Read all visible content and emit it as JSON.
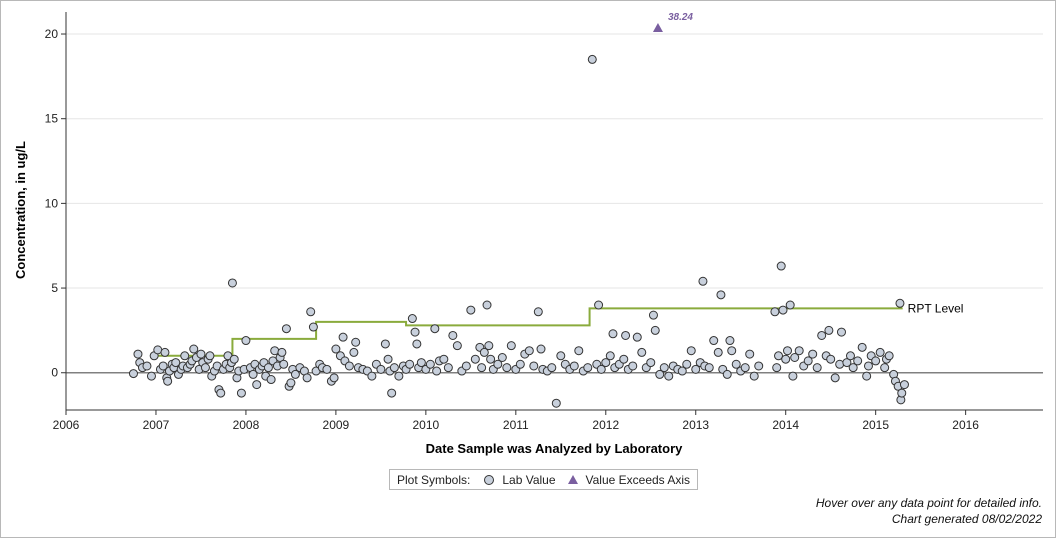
{
  "chart_data": {
    "type": "scatter",
    "xlabel": "Date Sample was Analyzed by Laboratory",
    "ylabel": "Concentration, in ug/L",
    "xlim": [
      2006.0,
      2016.86
    ],
    "ylim": [
      -2.2,
      21.3
    ],
    "x_ticks": [
      2006,
      2007,
      2008,
      2009,
      2010,
      2011,
      2012,
      2013,
      2014,
      2015,
      2016
    ],
    "y_ticks": [
      0,
      5,
      10,
      15,
      20
    ],
    "grid": "horizontal",
    "colors": {
      "lab_value_fill": "#c8d0dc",
      "marker_edge": "#333333",
      "exceeds": "#7a5fa0",
      "rpt": "#8aab3c",
      "zero_line": "#808080",
      "grid": "#e6e6e6"
    },
    "rpt_level": {
      "name": "RPT Level",
      "steps": [
        {
          "x": 2007.0,
          "y": 1.0
        },
        {
          "x": 2007.85,
          "y": 2.0
        },
        {
          "x": 2008.78,
          "y": 3.0
        },
        {
          "x": 2009.78,
          "y": 2.8
        },
        {
          "x": 2011.82,
          "y": 3.8
        },
        {
          "x": 2015.3,
          "y": 3.8
        }
      ]
    },
    "exceeds_axis": [
      {
        "x": 2012.58,
        "y": 38.24,
        "label": "38.24"
      }
    ],
    "lab_values": [
      [
        2006.75,
        -0.05
      ],
      [
        2006.8,
        1.1
      ],
      [
        2006.82,
        0.6
      ],
      [
        2006.85,
        0.3
      ],
      [
        2006.9,
        0.4
      ],
      [
        2006.95,
        -0.2
      ],
      [
        2006.98,
        1.0
      ],
      [
        2007.02,
        1.35
      ],
      [
        2007.05,
        0.2
      ],
      [
        2007.08,
        0.4
      ],
      [
        2007.1,
        1.2
      ],
      [
        2007.12,
        -0.3
      ],
      [
        2007.13,
        -0.5
      ],
      [
        2007.15,
        0.1
      ],
      [
        2007.18,
        0.5
      ],
      [
        2007.2,
        0.3
      ],
      [
        2007.22,
        0.6
      ],
      [
        2007.25,
        -0.1
      ],
      [
        2007.28,
        0.2
      ],
      [
        2007.3,
        0.4
      ],
      [
        2007.32,
        1.0
      ],
      [
        2007.35,
        0.3
      ],
      [
        2007.38,
        0.5
      ],
      [
        2007.4,
        0.7
      ],
      [
        2007.42,
        1.4
      ],
      [
        2007.45,
        0.9
      ],
      [
        2007.48,
        0.2
      ],
      [
        2007.5,
        1.1
      ],
      [
        2007.52,
        0.6
      ],
      [
        2007.55,
        0.3
      ],
      [
        2007.58,
        0.8
      ],
      [
        2007.6,
        1.0
      ],
      [
        2007.62,
        -0.2
      ],
      [
        2007.65,
        0.1
      ],
      [
        2007.68,
        0.4
      ],
      [
        2007.7,
        -1.0
      ],
      [
        2007.72,
        -1.2
      ],
      [
        2007.75,
        0.2
      ],
      [
        2007.78,
        0.5
      ],
      [
        2007.8,
        1.0
      ],
      [
        2007.82,
        0.3
      ],
      [
        2007.84,
        0.6
      ],
      [
        2007.85,
        5.3
      ],
      [
        2007.87,
        0.8
      ],
      [
        2007.9,
        -0.3
      ],
      [
        2007.92,
        0.1
      ],
      [
        2007.95,
        -1.2
      ],
      [
        2007.98,
        0.2
      ],
      [
        2008.0,
        1.9
      ],
      [
        2008.05,
        0.3
      ],
      [
        2008.08,
        -0.1
      ],
      [
        2008.1,
        0.5
      ],
      [
        2008.12,
        -0.7
      ],
      [
        2008.15,
        0.2
      ],
      [
        2008.18,
        0.4
      ],
      [
        2008.2,
        0.6
      ],
      [
        2008.22,
        -0.2
      ],
      [
        2008.25,
        0.3
      ],
      [
        2008.28,
        -0.4
      ],
      [
        2008.3,
        0.7
      ],
      [
        2008.32,
        1.3
      ],
      [
        2008.35,
        0.4
      ],
      [
        2008.38,
        0.9
      ],
      [
        2008.4,
        1.2
      ],
      [
        2008.42,
        0.5
      ],
      [
        2008.45,
        2.6
      ],
      [
        2008.48,
        -0.8
      ],
      [
        2008.5,
        -0.6
      ],
      [
        2008.52,
        0.2
      ],
      [
        2008.55,
        -0.1
      ],
      [
        2008.6,
        0.3
      ],
      [
        2008.65,
        0.1
      ],
      [
        2008.68,
        -0.3
      ],
      [
        2008.72,
        3.6
      ],
      [
        2008.75,
        2.7
      ],
      [
        2008.78,
        0.1
      ],
      [
        2008.82,
        0.5
      ],
      [
        2008.85,
        0.3
      ],
      [
        2008.9,
        0.2
      ],
      [
        2008.95,
        -0.5
      ],
      [
        2008.98,
        -0.3
      ],
      [
        2009.0,
        1.4
      ],
      [
        2009.05,
        1.0
      ],
      [
        2009.08,
        2.1
      ],
      [
        2009.1,
        0.7
      ],
      [
        2009.15,
        0.4
      ],
      [
        2009.2,
        1.2
      ],
      [
        2009.22,
        1.8
      ],
      [
        2009.25,
        0.3
      ],
      [
        2009.3,
        0.2
      ],
      [
        2009.35,
        0.1
      ],
      [
        2009.4,
        -0.2
      ],
      [
        2009.45,
        0.5
      ],
      [
        2009.5,
        0.2
      ],
      [
        2009.55,
        1.7
      ],
      [
        2009.58,
        0.8
      ],
      [
        2009.6,
        0.1
      ],
      [
        2009.62,
        -1.2
      ],
      [
        2009.65,
        0.3
      ],
      [
        2009.7,
        -0.2
      ],
      [
        2009.75,
        0.4
      ],
      [
        2009.78,
        0.2
      ],
      [
        2009.82,
        0.5
      ],
      [
        2009.85,
        3.2
      ],
      [
        2009.88,
        2.4
      ],
      [
        2009.9,
        1.7
      ],
      [
        2009.92,
        0.3
      ],
      [
        2009.95,
        0.6
      ],
      [
        2010.0,
        0.2
      ],
      [
        2010.05,
        0.5
      ],
      [
        2010.1,
        2.6
      ],
      [
        2010.12,
        0.1
      ],
      [
        2010.15,
        0.7
      ],
      [
        2010.2,
        0.8
      ],
      [
        2010.25,
        0.3
      ],
      [
        2010.3,
        2.2
      ],
      [
        2010.35,
        1.6
      ],
      [
        2010.4,
        0.1
      ],
      [
        2010.45,
        0.4
      ],
      [
        2010.5,
        3.7
      ],
      [
        2010.55,
        0.8
      ],
      [
        2010.6,
        1.5
      ],
      [
        2010.62,
        0.3
      ],
      [
        2010.65,
        1.2
      ],
      [
        2010.68,
        4.0
      ],
      [
        2010.7,
        1.6
      ],
      [
        2010.72,
        0.8
      ],
      [
        2010.75,
        0.2
      ],
      [
        2010.8,
        0.5
      ],
      [
        2010.85,
        0.9
      ],
      [
        2010.9,
        0.3
      ],
      [
        2010.95,
        1.6
      ],
      [
        2011.0,
        0.2
      ],
      [
        2011.05,
        0.5
      ],
      [
        2011.1,
        1.1
      ],
      [
        2011.15,
        1.3
      ],
      [
        2011.2,
        0.4
      ],
      [
        2011.25,
        3.6
      ],
      [
        2011.28,
        1.4
      ],
      [
        2011.3,
        0.2
      ],
      [
        2011.35,
        0.1
      ],
      [
        2011.4,
        0.3
      ],
      [
        2011.45,
        -1.8
      ],
      [
        2011.5,
        1.0
      ],
      [
        2011.55,
        0.5
      ],
      [
        2011.6,
        0.2
      ],
      [
        2011.65,
        0.4
      ],
      [
        2011.7,
        1.3
      ],
      [
        2011.75,
        0.1
      ],
      [
        2011.8,
        0.3
      ],
      [
        2011.85,
        18.5
      ],
      [
        2011.9,
        0.5
      ],
      [
        2011.92,
        4.0
      ],
      [
        2011.95,
        0.2
      ],
      [
        2012.0,
        0.6
      ],
      [
        2012.05,
        1.0
      ],
      [
        2012.08,
        2.3
      ],
      [
        2012.1,
        0.3
      ],
      [
        2012.15,
        0.5
      ],
      [
        2012.2,
        0.8
      ],
      [
        2012.22,
        2.2
      ],
      [
        2012.25,
        0.2
      ],
      [
        2012.3,
        0.4
      ],
      [
        2012.35,
        2.1
      ],
      [
        2012.4,
        1.2
      ],
      [
        2012.45,
        0.3
      ],
      [
        2012.5,
        0.6
      ],
      [
        2012.53,
        3.4
      ],
      [
        2012.55,
        2.5
      ],
      [
        2012.6,
        -0.1
      ],
      [
        2012.65,
        0.3
      ],
      [
        2012.7,
        -0.2
      ],
      [
        2012.75,
        0.4
      ],
      [
        2012.8,
        0.2
      ],
      [
        2012.85,
        0.1
      ],
      [
        2012.9,
        0.5
      ],
      [
        2012.95,
        1.3
      ],
      [
        2013.0,
        0.2
      ],
      [
        2013.05,
        0.6
      ],
      [
        2013.08,
        5.4
      ],
      [
        2013.1,
        0.4
      ],
      [
        2013.15,
        0.3
      ],
      [
        2013.2,
        1.9
      ],
      [
        2013.25,
        1.2
      ],
      [
        2013.28,
        4.6
      ],
      [
        2013.3,
        0.2
      ],
      [
        2013.35,
        -0.1
      ],
      [
        2013.38,
        1.9
      ],
      [
        2013.4,
        1.3
      ],
      [
        2013.45,
        0.5
      ],
      [
        2013.5,
        0.1
      ],
      [
        2013.55,
        0.3
      ],
      [
        2013.6,
        1.1
      ],
      [
        2013.65,
        -0.2
      ],
      [
        2013.7,
        0.4
      ],
      [
        2013.88,
        3.6
      ],
      [
        2013.9,
        0.3
      ],
      [
        2013.92,
        1.0
      ],
      [
        2013.95,
        6.3
      ],
      [
        2013.97,
        3.7
      ],
      [
        2014.0,
        0.8
      ],
      [
        2014.02,
        1.3
      ],
      [
        2014.05,
        4.0
      ],
      [
        2014.08,
        -0.2
      ],
      [
        2014.1,
        0.9
      ],
      [
        2014.15,
        1.3
      ],
      [
        2014.2,
        0.4
      ],
      [
        2014.25,
        0.7
      ],
      [
        2014.3,
        1.1
      ],
      [
        2014.35,
        0.3
      ],
      [
        2014.4,
        2.2
      ],
      [
        2014.45,
        1.0
      ],
      [
        2014.48,
        2.5
      ],
      [
        2014.5,
        0.8
      ],
      [
        2014.55,
        -0.3
      ],
      [
        2014.6,
        0.5
      ],
      [
        2014.62,
        2.4
      ],
      [
        2014.68,
        0.6
      ],
      [
        2014.72,
        1.0
      ],
      [
        2014.75,
        0.3
      ],
      [
        2014.8,
        0.7
      ],
      [
        2014.85,
        1.5
      ],
      [
        2014.9,
        -0.2
      ],
      [
        2014.92,
        0.4
      ],
      [
        2014.95,
        1.0
      ],
      [
        2015.0,
        0.7
      ],
      [
        2015.05,
        1.2
      ],
      [
        2015.1,
        0.3
      ],
      [
        2015.12,
        0.8
      ],
      [
        2015.15,
        1.0
      ],
      [
        2015.2,
        -0.1
      ],
      [
        2015.22,
        -0.5
      ],
      [
        2015.25,
        -0.8
      ],
      [
        2015.27,
        4.1
      ],
      [
        2015.28,
        -1.6
      ],
      [
        2015.29,
        -1.2
      ],
      [
        2015.32,
        -0.7
      ]
    ]
  },
  "legend": {
    "title": "Plot Symbols:",
    "items": [
      {
        "label": "Lab Value",
        "symbol": "circle"
      },
      {
        "label": "Value Exceeds Axis",
        "symbol": "triangle"
      }
    ]
  },
  "footnotes": {
    "hover": "Hover over any data point for detailed info.",
    "generated": "Chart generated 08/02/2022"
  }
}
